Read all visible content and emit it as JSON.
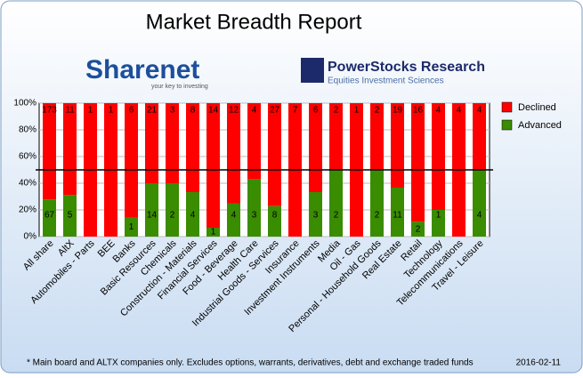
{
  "chart_data": {
    "type": "bar",
    "stacked": "percent",
    "title": "Market Breadth Report",
    "logos": [
      {
        "name": "Sharenet",
        "tagline": "your key to investing"
      },
      {
        "name": "PowerStocks Research",
        "tagline": "Equities Investment Sciences"
      }
    ],
    "categories": [
      "All share",
      "AltX",
      "Automobiles - Parts",
      "BEE",
      "Banks",
      "Basic Resources",
      "Chemicals",
      "Construction - Materials",
      "Financial Services",
      "Food - Beverage",
      "Health Care",
      "Industrial Goods - Services",
      "Insurance",
      "Investment Instruments",
      "Media",
      "Oil - Gas",
      "Personal - Household Goods",
      "Real Estate",
      "Retail",
      "Technology",
      "Telecommunications",
      "Travel - Leisure"
    ],
    "series": [
      {
        "name": "Declined",
        "color": "#ff0000",
        "values": [
          173,
          11,
          1,
          1,
          6,
          21,
          3,
          8,
          14,
          12,
          4,
          27,
          7,
          6,
          2,
          1,
          2,
          19,
          16,
          4,
          4,
          4
        ]
      },
      {
        "name": "Advanced",
        "color": "#3a8c00",
        "values": [
          67,
          5,
          0,
          0,
          1,
          14,
          2,
          4,
          1,
          4,
          3,
          8,
          0,
          3,
          2,
          0,
          2,
          11,
          2,
          1,
          0,
          4
        ]
      }
    ],
    "ylim": [
      0,
      100
    ],
    "yticks": [
      {
        "value": 0,
        "label": "0%"
      },
      {
        "value": 20,
        "label": "20%"
      },
      {
        "value": 40,
        "label": "40%"
      },
      {
        "value": 60,
        "label": "60%"
      },
      {
        "value": 80,
        "label": "80%"
      },
      {
        "value": 100,
        "label": "100%"
      }
    ],
    "reference_line": 50,
    "grid": true,
    "legend": "right",
    "footnote": "* Main board and ALTX companies only. Excludes options, warrants, derivatives, debt and exchange traded funds",
    "date": "2016-02-11"
  }
}
